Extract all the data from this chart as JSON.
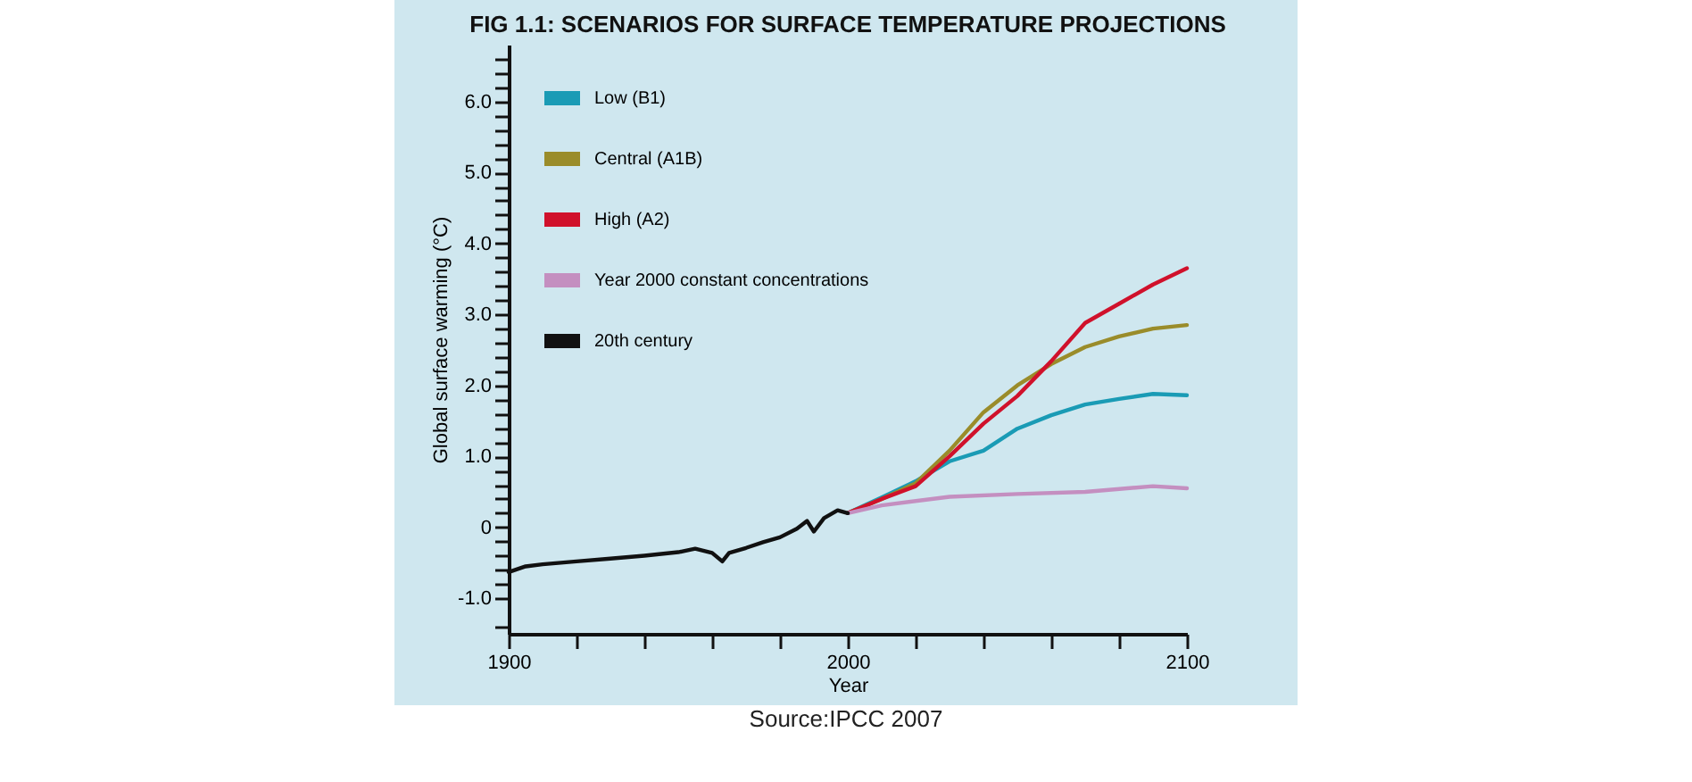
{
  "chart_data": {
    "type": "line",
    "title": "FIG 1.1: SCENARIOS FOR SURFACE TEMPERATURE PROJECTIONS",
    "xlabel": "Year",
    "ylabel": "Global surface warming (°C)",
    "annotations": [
      "Source:IPCC 2007"
    ],
    "xlim": [
      1900,
      2100
    ],
    "ylim": [
      -1.5,
      6.8
    ],
    "xticks": [
      1900,
      {
        "value": 1920,
        "label": null
      },
      {
        "value": 1940,
        "label": null
      },
      {
        "value": 1960,
        "label": null
      },
      {
        "value": 1980,
        "label": null
      },
      2000,
      {
        "value": 2020,
        "label": null
      },
      {
        "value": 2040,
        "label": null
      },
      {
        "value": 2060,
        "label": null
      },
      {
        "value": 2080,
        "label": null
      },
      2100
    ],
    "yticks": [
      {
        "value": -1.4,
        "label": null
      },
      {
        "value": -1,
        "label": "-1.0"
      },
      {
        "value": -0.8,
        "label": null
      },
      {
        "value": -0.6,
        "label": null
      },
      {
        "value": -0.4,
        "label": null
      },
      {
        "value": -0.2,
        "label": null
      },
      0,
      {
        "value": 0.2,
        "label": null
      },
      {
        "value": 0.4,
        "label": null
      },
      {
        "value": 0.6,
        "label": null
      },
      {
        "value": 0.8,
        "label": null
      },
      {
        "value": 1,
        "label": "1.0"
      },
      {
        "value": 1.2,
        "label": null
      },
      {
        "value": 1.4,
        "label": null
      },
      {
        "value": 1.6,
        "label": null
      },
      {
        "value": 1.8,
        "label": null
      },
      {
        "value": 2,
        "label": "2.0"
      },
      {
        "value": 2.2,
        "label": null
      },
      {
        "value": 2.4,
        "label": null
      },
      {
        "value": 2.6,
        "label": null
      },
      {
        "value": 2.8,
        "label": null
      },
      {
        "value": 3,
        "label": "3.0"
      },
      {
        "value": 3.2,
        "label": null
      },
      {
        "value": 3.4,
        "label": null
      },
      {
        "value": 3.6,
        "label": null
      },
      {
        "value": 3.8,
        "label": null
      },
      {
        "value": 4,
        "label": "4.0"
      },
      {
        "value": 4.2,
        "label": null
      },
      {
        "value": 4.4,
        "label": null
      },
      {
        "value": 4.6,
        "label": null
      },
      {
        "value": 4.8,
        "label": null
      },
      {
        "value": 5,
        "label": "5.0"
      },
      {
        "value": 5.2,
        "label": null
      },
      {
        "value": 5.4,
        "label": null
      },
      {
        "value": 5.6,
        "label": null
      },
      {
        "value": 5.8,
        "label": null
      },
      {
        "value": 6,
        "label": "6.0"
      },
      {
        "value": 6.2,
        "label": null
      },
      {
        "value": 6.4,
        "label": null
      },
      {
        "value": 6.6,
        "label": null
      }
    ],
    "grid": false,
    "legend": "top left",
    "line_style": "solid",
    "marker": "none",
    "series": [
      {
        "name": "Low (B1)",
        "color": "#1a9bb5",
        "x": [
          2000,
          2010,
          2020,
          2030,
          2040,
          2050,
          2060,
          2070,
          2080,
          2090,
          2100
        ],
        "values": [
          0.2,
          0.42,
          0.65,
          0.93,
          1.08,
          1.39,
          1.58,
          1.73,
          1.81,
          1.88,
          1.86
        ]
      },
      {
        "name": "Central (A1B)",
        "color": "#9a8c2a",
        "x": [
          2000,
          2010,
          2020,
          2030,
          2040,
          2050,
          2060,
          2070,
          2080,
          2090,
          2100
        ],
        "values": [
          0.2,
          0.4,
          0.62,
          1.08,
          1.62,
          2.0,
          2.3,
          2.54,
          2.69,
          2.8,
          2.85
        ]
      },
      {
        "name": "High (A2)",
        "color": "#d0112b",
        "x": [
          2000,
          2010,
          2020,
          2030,
          2040,
          2050,
          2060,
          2070,
          2080,
          2090,
          2100
        ],
        "values": [
          0.2,
          0.4,
          0.58,
          1.0,
          1.46,
          1.85,
          2.34,
          2.88,
          3.15,
          3.42,
          3.65
        ]
      },
      {
        "name": "Year 2000 constant concentrations",
        "color": "#c48fc0",
        "x": [
          2000,
          2010,
          2030,
          2050,
          2070,
          2090,
          2100
        ],
        "values": [
          0.2,
          0.31,
          0.43,
          0.47,
          0.5,
          0.58,
          0.55
        ]
      },
      {
        "name": "20th century",
        "color": "#111111",
        "x": [
          1900,
          1905,
          1910,
          1920,
          1930,
          1940,
          1950,
          1955,
          1960,
          1963,
          1965,
          1970,
          1975,
          1980,
          1985,
          1988,
          1990,
          1993,
          1997,
          2000
        ],
        "values": [
          -0.63,
          -0.55,
          -0.52,
          -0.48,
          -0.44,
          -0.4,
          -0.35,
          -0.3,
          -0.36,
          -0.48,
          -0.36,
          -0.29,
          -0.21,
          -0.14,
          -0.02,
          0.09,
          -0.06,
          0.13,
          0.24,
          0.2
        ]
      }
    ]
  }
}
